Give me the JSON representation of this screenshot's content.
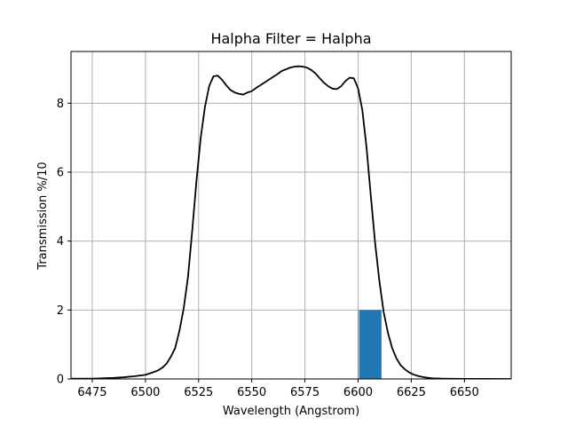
{
  "chart_data": {
    "type": "line",
    "title": "Halpha Filter = Halpha",
    "xlabel": "Wavelength (Angstrom)",
    "ylabel": "Transmission %/10",
    "xlim": [
      6465,
      6672
    ],
    "ylim": [
      0,
      9.5
    ],
    "xticks": [
      6475,
      6500,
      6525,
      6550,
      6575,
      6600,
      6625,
      6650
    ],
    "yticks": [
      0,
      2,
      4,
      6,
      8
    ],
    "grid": true,
    "legend": "none",
    "series": [
      {
        "color": "#000000",
        "x": [
          6465,
          6475,
          6485,
          6490,
          6495,
          6500,
          6503,
          6506,
          6508,
          6510,
          6512,
          6514,
          6516,
          6518,
          6520,
          6522,
          6524,
          6526,
          6528,
          6530,
          6532,
          6534,
          6536,
          6538,
          6540,
          6542,
          6544,
          6546,
          6548,
          6550,
          6552,
          6554,
          6556,
          6558,
          6560,
          6562,
          6564,
          6566,
          6568,
          6570,
          6572,
          6574,
          6576,
          6578,
          6580,
          6582,
          6584,
          6586,
          6588,
          6590,
          6592,
          6594,
          6596,
          6598,
          6600,
          6602,
          6604,
          6606,
          6608,
          6610,
          6612,
          6614,
          6616,
          6618,
          6620,
          6622,
          6624,
          6626,
          6628,
          6630,
          6632,
          6635,
          6640,
          6645,
          6650,
          6660,
          6672
        ],
        "y": [
          0.01,
          0.01,
          0.03,
          0.05,
          0.08,
          0.12,
          0.18,
          0.25,
          0.33,
          0.45,
          0.65,
          0.9,
          1.4,
          2.05,
          2.95,
          4.3,
          5.75,
          7.0,
          7.9,
          8.5,
          8.78,
          8.8,
          8.68,
          8.52,
          8.38,
          8.31,
          8.27,
          8.25,
          8.31,
          8.35,
          8.44,
          8.52,
          8.6,
          8.68,
          8.76,
          8.84,
          8.93,
          8.98,
          9.03,
          9.06,
          9.07,
          9.06,
          9.03,
          8.96,
          8.86,
          8.72,
          8.59,
          8.49,
          8.42,
          8.41,
          8.49,
          8.64,
          8.74,
          8.72,
          8.43,
          7.8,
          6.7,
          5.3,
          3.95,
          2.85,
          1.95,
          1.35,
          0.9,
          0.6,
          0.4,
          0.28,
          0.19,
          0.13,
          0.09,
          0.06,
          0.04,
          0.02,
          0.01,
          0.005,
          0.003,
          0.001,
          0.0
        ]
      },
      {
        "type": "bar",
        "color": "#1f77b4",
        "bars": [
          {
            "x_start": 6600,
            "x_end": 6611,
            "value": 2.0
          }
        ]
      }
    ]
  }
}
